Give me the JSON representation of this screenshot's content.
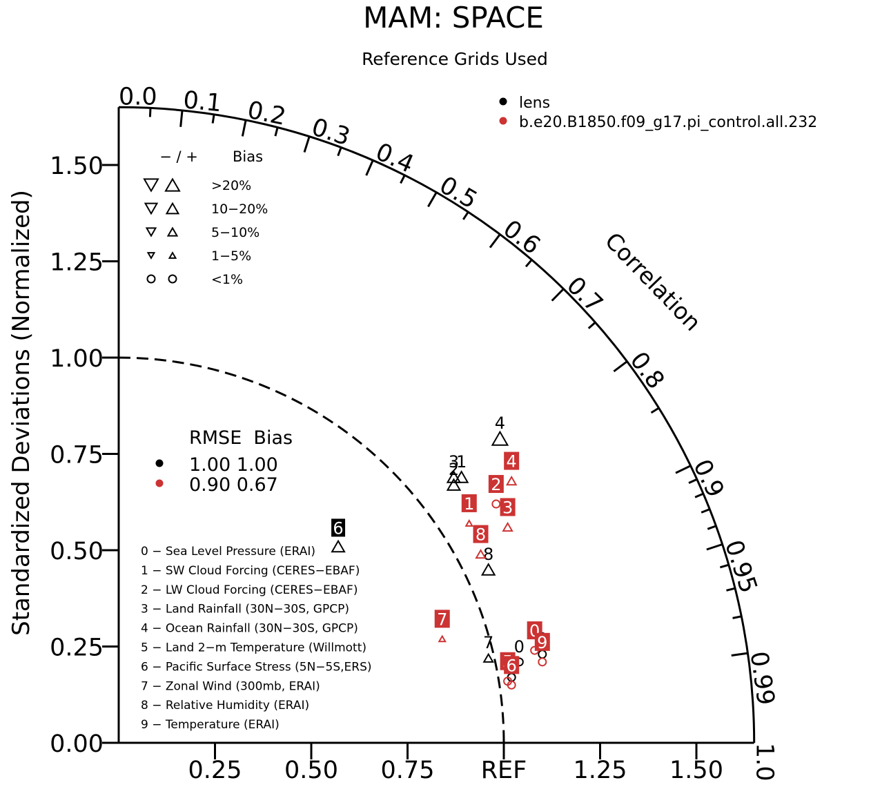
{
  "title": "MAM: SPACE",
  "subtitle": "Reference Grids Used",
  "colors": {
    "lens": "#000000",
    "model2": "#cc3333"
  },
  "legend": {
    "series": [
      {
        "name": "lens",
        "color": "#000000"
      },
      {
        "name": "b.e20.B1850.f09_g17.pi_control.all.232",
        "color": "#cc3333"
      }
    ],
    "bias_header": "− / +",
    "bias_title": "Bias",
    "bias_rows": [
      ">20%",
      "10−20%",
      "5−10%",
      "1−5%",
      "<1%"
    ],
    "rmse_header": "RMSE  Bias",
    "rmse_rows": [
      {
        "color": "#000000",
        "text": "1.00   1.00"
      },
      {
        "color": "#cc3333",
        "text": "0.90   0.67"
      }
    ]
  },
  "variables": [
    "0 − Sea Level Pressure (ERAI)",
    "1 − SW Cloud Forcing (CERES−EBAF)",
    "2 − LW Cloud Forcing (CERES−EBAF)",
    "3 − Land Rainfall (30N−30S, GPCP)",
    "4 − Ocean Rainfall (30N−30S, GPCP)",
    "5 − Land 2−m Temperature (Willmott)",
    "6 − Pacific Surface Stress (5N−5S,ERS)",
    "7 − Zonal Wind (300mb, ERAI)",
    "8 − Relative Humidity (ERAI)",
    "9 − Temperature (ERAI)"
  ],
  "chart_data": {
    "type": "scatter",
    "title": "MAM: SPACE",
    "subtitle": "Reference Grids Used",
    "ylabel": "Standardized Deviations (Normalized)",
    "arc_label": "Correlation",
    "ref_label": "REF",
    "xlim": [
      0,
      1.65
    ],
    "ylim": [
      0,
      1.65
    ],
    "y_ticks": [
      "0.00",
      "0.25",
      "0.50",
      "0.75",
      "1.00",
      "1.25",
      "1.50"
    ],
    "x_ticks": [
      "0.25",
      "0.50",
      "0.75",
      "REF",
      "1.25",
      "1.50"
    ],
    "correlation_ticks": [
      "0.0",
      "0.1",
      "0.2",
      "0.3",
      "0.4",
      "0.5",
      "0.6",
      "0.7",
      "0.8",
      "0.9",
      "0.95",
      "0.99",
      "1.0"
    ],
    "reference_std": 1.0,
    "series": [
      {
        "name": "lens",
        "color": "#000000",
        "points": [
          {
            "id": "0",
            "x": 1.04,
            "y": 0.21,
            "bias": "<1%"
          },
          {
            "id": "1",
            "x": 0.89,
            "y": 0.69,
            "bias": "10−20%"
          },
          {
            "id": "2",
            "x": 0.87,
            "y": 0.67,
            "bias": "10−20%"
          },
          {
            "id": "3",
            "x": 0.87,
            "y": 0.69,
            "bias": "10−20%"
          },
          {
            "id": "4",
            "x": 0.99,
            "y": 0.79,
            "bias": ">20%"
          },
          {
            "id": "5",
            "x": 1.02,
            "y": 0.17,
            "bias": "<1%"
          },
          {
            "id": "6",
            "x": 0.57,
            "y": 0.51,
            "bias": "10−20%"
          },
          {
            "id": "7",
            "x": 0.96,
            "y": 0.22,
            "bias": "5−10%"
          },
          {
            "id": "8",
            "x": 0.96,
            "y": 0.45,
            "bias": "10−20%"
          },
          {
            "id": "9",
            "x": 1.1,
            "y": 0.23,
            "bias": "<1%"
          }
        ]
      },
      {
        "name": "b.e20.B1850.f09_g17.pi_control.all.232",
        "color": "#cc3333",
        "points": [
          {
            "id": "0",
            "x": 1.08,
            "y": 0.24,
            "bias": "<1%"
          },
          {
            "id": "1",
            "x": 0.91,
            "y": 0.57,
            "bias": "1−5%"
          },
          {
            "id": "2",
            "x": 0.98,
            "y": 0.62,
            "bias": "<1%"
          },
          {
            "id": "3",
            "x": 1.01,
            "y": 0.56,
            "bias": "5−10%"
          },
          {
            "id": "4",
            "x": 1.02,
            "y": 0.68,
            "bias": "5−10%"
          },
          {
            "id": "5",
            "x": 1.01,
            "y": 0.16,
            "bias": "<1%"
          },
          {
            "id": "6",
            "x": 1.02,
            "y": 0.15,
            "bias": "<1%"
          },
          {
            "id": "7",
            "x": 0.84,
            "y": 0.27,
            "bias": "1−5%"
          },
          {
            "id": "8",
            "x": 0.94,
            "y": 0.49,
            "bias": "5−10%"
          },
          {
            "id": "9",
            "x": 1.1,
            "y": 0.21,
            "bias": "<1%"
          }
        ]
      }
    ]
  }
}
